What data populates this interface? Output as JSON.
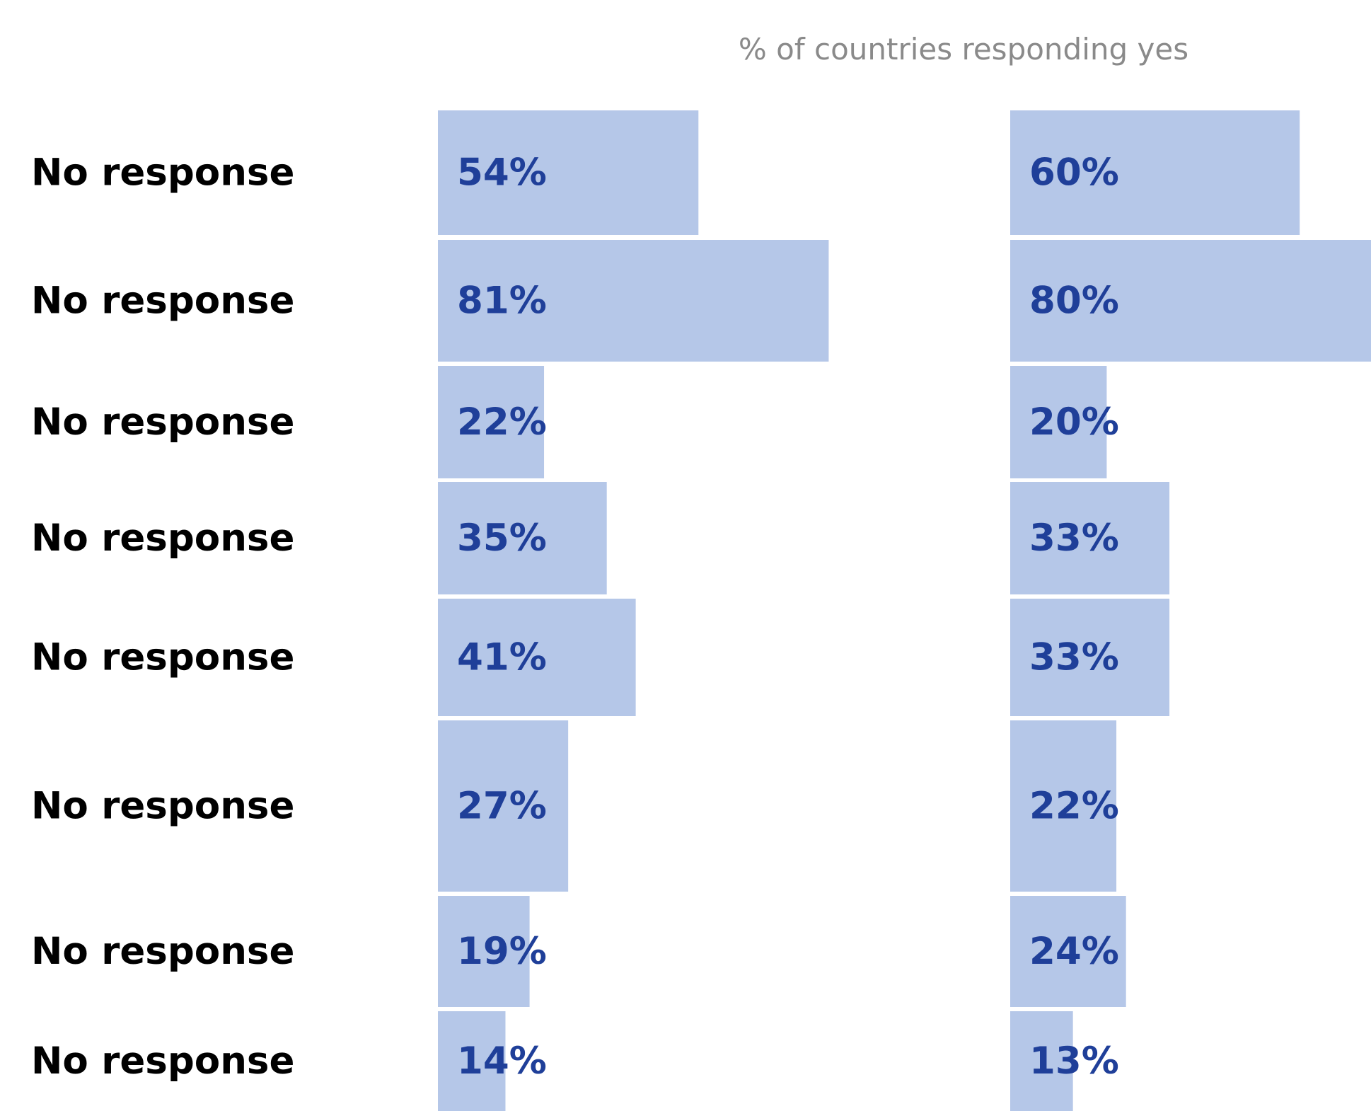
{
  "chart_data": {
    "type": "bar",
    "orientation": "horizontal",
    "subtitle": "% of countries responding yes",
    "categories": [
      "No response",
      "No response",
      "No response",
      "No response",
      "No response",
      "No response",
      "No response",
      "No response"
    ],
    "series": [
      {
        "values": [
          54,
          81,
          22,
          35,
          41,
          27,
          19,
          14
        ],
        "labels": [
          "54%",
          "81%",
          "22%",
          "35%",
          "41%",
          "27%",
          "19%",
          "14%"
        ]
      },
      {
        "values": [
          60,
          80,
          20,
          33,
          33,
          22,
          24,
          13
        ],
        "labels": [
          "60%",
          "80%",
          "20%",
          "33%",
          "33%",
          "22%",
          "24%",
          "13%"
        ]
      }
    ],
    "xlim": [
      0,
      100
    ],
    "grid": false,
    "legend": "none"
  },
  "colors": {
    "bar_fill": "#b5c7e8",
    "value_text": "#1f3f99",
    "label_text": "#000000",
    "subtitle_text": "#8a8a8a"
  }
}
